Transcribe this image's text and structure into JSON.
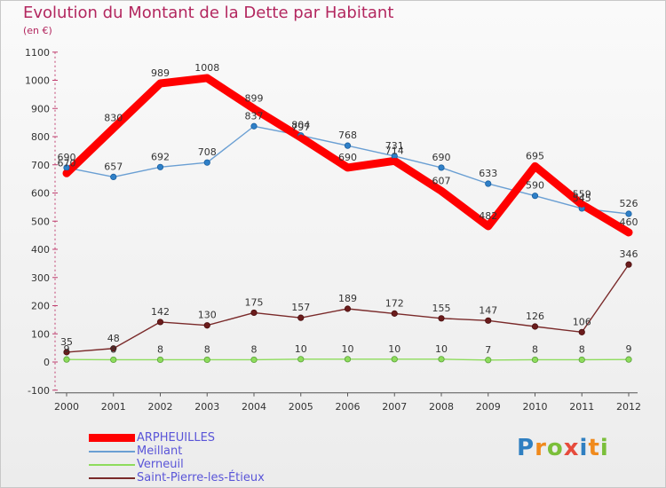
{
  "chart_data": {
    "type": "line",
    "title": "Evolution du Montant de la Dette par Habitant",
    "unit_label": "(en €)",
    "x": [
      "2000",
      "2001",
      "2002",
      "2003",
      "2004",
      "2005",
      "2006",
      "2007",
      "2008",
      "2009",
      "2010",
      "2011",
      "2012"
    ],
    "ylim": [
      -100,
      1100
    ],
    "yticks": [
      -100,
      0,
      100,
      200,
      300,
      400,
      500,
      600,
      700,
      800,
      900,
      1000,
      1100
    ],
    "grid": false,
    "legend_position": "bottom-left",
    "series": [
      {
        "name": "ARPHEUILLES",
        "color": "#ff0000",
        "values": [
          670,
          830,
          989,
          1008,
          899,
          797,
          690,
          714,
          607,
          482,
          695,
          559,
          460
        ]
      },
      {
        "name": "Meillant",
        "color": "#6a9fd3",
        "values": [
          690,
          657,
          692,
          708,
          837,
          804,
          768,
          731,
          690,
          633,
          590,
          545,
          526
        ]
      },
      {
        "name": "Verneuil",
        "color": "#8edc5c",
        "values": [
          9,
          8,
          8,
          8,
          8,
          10,
          10,
          10,
          10,
          7,
          8,
          8,
          9
        ]
      },
      {
        "name": "Saint-Pierre-les-Étieux",
        "color": "#7a2a2a",
        "values": [
          35,
          48,
          142,
          130,
          175,
          157,
          189,
          172,
          155,
          147,
          126,
          106,
          346
        ]
      }
    ],
    "data_labels": [
      [
        "670",
        "830",
        "989",
        "1008",
        "899",
        "797",
        "690",
        "714",
        "607",
        "482",
        "695",
        "559",
        "460"
      ],
      [
        "690",
        "657",
        "692",
        "708",
        "837",
        "804",
        "768",
        "731",
        "690",
        "633",
        "590",
        "545",
        "526"
      ],
      [
        "9",
        "8",
        "8",
        "8",
        "8",
        "10",
        "10",
        "10",
        "10",
        "7",
        "8",
        "8",
        "9"
      ],
      [
        "35",
        "48",
        "142",
        "130",
        "175",
        "157",
        "189",
        "172",
        "155",
        "147",
        "126",
        "106",
        "346"
      ]
    ]
  },
  "logo": {
    "text": "Proxiti",
    "colors": [
      "#2f7fc1",
      "#f08a1c",
      "#7bbf3a",
      "#e64b3c",
      "#2f7fc1",
      "#f08a1c",
      "#7bbf3a"
    ]
  }
}
